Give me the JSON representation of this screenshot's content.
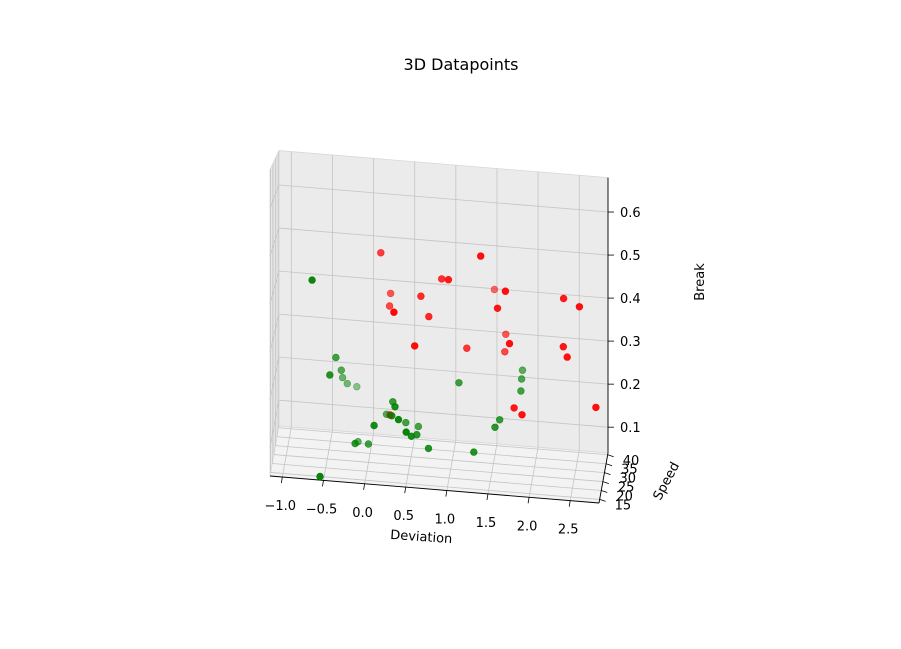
{
  "chart_data": {
    "type": "scatter3d",
    "title": "3D Datapoints",
    "xlabel": "Deviation",
    "ylabel": "Speed",
    "zlabel": "Break",
    "grid": true,
    "xlim": [
      -1.15,
      2.85
    ],
    "ylim": [
      13,
      41
    ],
    "zlim": [
      0.04,
      0.68
    ],
    "xticks": [
      "−1.0",
      "−0.5",
      "0.0",
      "0.5",
      "1.0",
      "1.5",
      "2.0",
      "2.5"
    ],
    "yticks": [
      "15",
      "20",
      "25",
      "30",
      "35",
      "40"
    ],
    "zticks": [
      "0.1",
      "0.2",
      "0.3",
      "0.4",
      "0.5",
      "0.6"
    ],
    "series": [
      {
        "name": "red",
        "color": "#ff0000",
        "points": [
          [
            0.3,
            15.5,
            0.18
          ],
          [
            0.6,
            15.5,
            0.33
          ],
          [
            0.35,
            14.5,
            0.4
          ],
          [
            1.4,
            16.0,
            0.53
          ],
          [
            1.7,
            16.0,
            0.46
          ],
          [
            2.6,
            16.0,
            0.44
          ],
          [
            2.8,
            16.0,
            0.23
          ],
          [
            2.4,
            17.0,
            0.35
          ],
          [
            1.9,
            16.5,
            0.2
          ],
          [
            1.75,
            16.0,
            0.35
          ],
          [
            1.6,
            17.0,
            0.42
          ],
          [
            1.8,
            17.5,
            0.21
          ],
          [
            2.4,
            18.0,
            0.45
          ],
          [
            2.45,
            16.5,
            0.33
          ],
          [
            0.9,
            22.5,
            0.46
          ],
          [
            0.65,
            22.0,
            0.42
          ],
          [
            0.75,
            21.0,
            0.38
          ],
          [
            1.0,
            18.0,
            0.47
          ],
          [
            0.15,
            25.0,
            0.5
          ],
          [
            0.25,
            27.0,
            0.38
          ],
          [
            0.25,
            30.0,
            0.4
          ],
          [
            1.2,
            24.0,
            0.31
          ],
          [
            1.65,
            27.0,
            0.3
          ],
          [
            1.65,
            30.0,
            0.33
          ],
          [
            1.5,
            33.0,
            0.42
          ]
        ]
      },
      {
        "name": "green",
        "color": "#008000",
        "points": [
          [
            -0.65,
            16.0,
            0.45
          ],
          [
            0.4,
            16.0,
            0.17
          ],
          [
            0.3,
            21.0,
            0.16
          ],
          [
            0.55,
            18.0,
            0.13
          ],
          [
            0.3,
            24.0,
            0.18
          ],
          [
            0.6,
            22.0,
            0.12
          ],
          [
            0.75,
            20.0,
            0.1
          ],
          [
            1.1,
            25.0,
            0.23
          ],
          [
            0.45,
            26.0,
            0.13
          ],
          [
            0.6,
            27.0,
            0.12
          ],
          [
            0.2,
            30.0,
            0.13
          ],
          [
            1.3,
            20.0,
            0.1
          ],
          [
            1.55,
            22.0,
            0.15
          ],
          [
            1.6,
            24.0,
            0.16
          ],
          [
            0.1,
            17.0,
            0.15
          ],
          [
            1.85,
            26.0,
            0.22
          ],
          [
            1.85,
            28.0,
            0.24
          ],
          [
            1.85,
            31.0,
            0.25
          ],
          [
            -0.45,
            20.0,
            0.24
          ],
          [
            -0.4,
            26.0,
            0.26
          ],
          [
            -0.35,
            30.0,
            0.22
          ],
          [
            -0.35,
            34.0,
            0.19
          ],
          [
            -0.3,
            36.0,
            0.17
          ],
          [
            -0.2,
            40.0,
            0.15
          ],
          [
            -0.55,
            15.0,
            0.04
          ],
          [
            0.35,
            18.0,
            0.19
          ],
          [
            0.0,
            25.0,
            0.08
          ],
          [
            -0.15,
            31.0,
            0.06
          ],
          [
            -0.15,
            22.0,
            0.09
          ],
          [
            0.5,
            14.5,
            0.15
          ]
        ]
      }
    ]
  }
}
